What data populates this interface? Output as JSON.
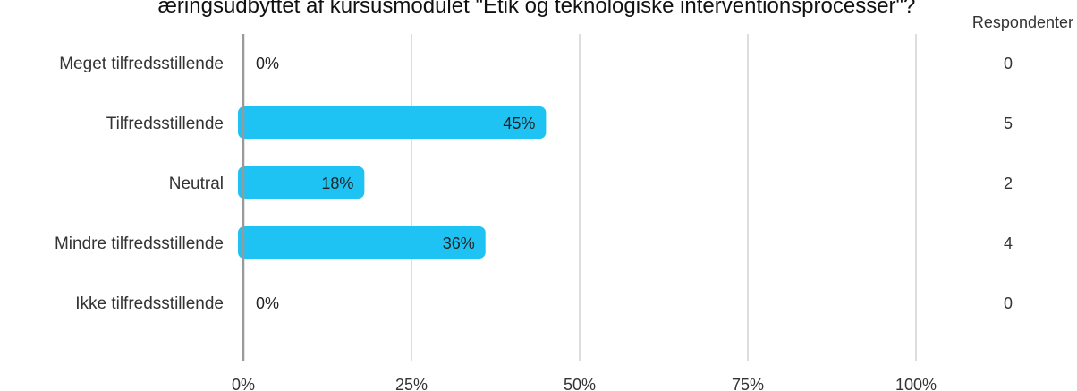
{
  "chart_data": {
    "type": "bar",
    "orientation": "horizontal",
    "title": "æringsudbyttet af kursusmodulet \"Etik og teknologiske interventionsprocesser\"?",
    "categories": [
      "Meget tilfredsstillende",
      "Tilfredsstillende",
      "Neutral",
      "Mindre tilfredsstillende",
      "Ikke tilfredsstillende"
    ],
    "values": [
      0,
      45,
      18,
      36,
      0
    ],
    "value_labels": [
      "0%",
      "45%",
      "18%",
      "36%",
      "0%"
    ],
    "respondents_header": "Respondenter",
    "respondents": [
      "0",
      "5",
      "2",
      "4",
      "0"
    ],
    "x_ticks": [
      0,
      25,
      50,
      75,
      100
    ],
    "x_tick_labels": [
      "0%",
      "25%",
      "50%",
      "75%",
      "100%"
    ],
    "xlim": [
      0,
      100
    ],
    "grid": true,
    "colors": {
      "bar": "#1fc3f3",
      "grid": "#bbbbbb",
      "axis": "#999999"
    }
  }
}
